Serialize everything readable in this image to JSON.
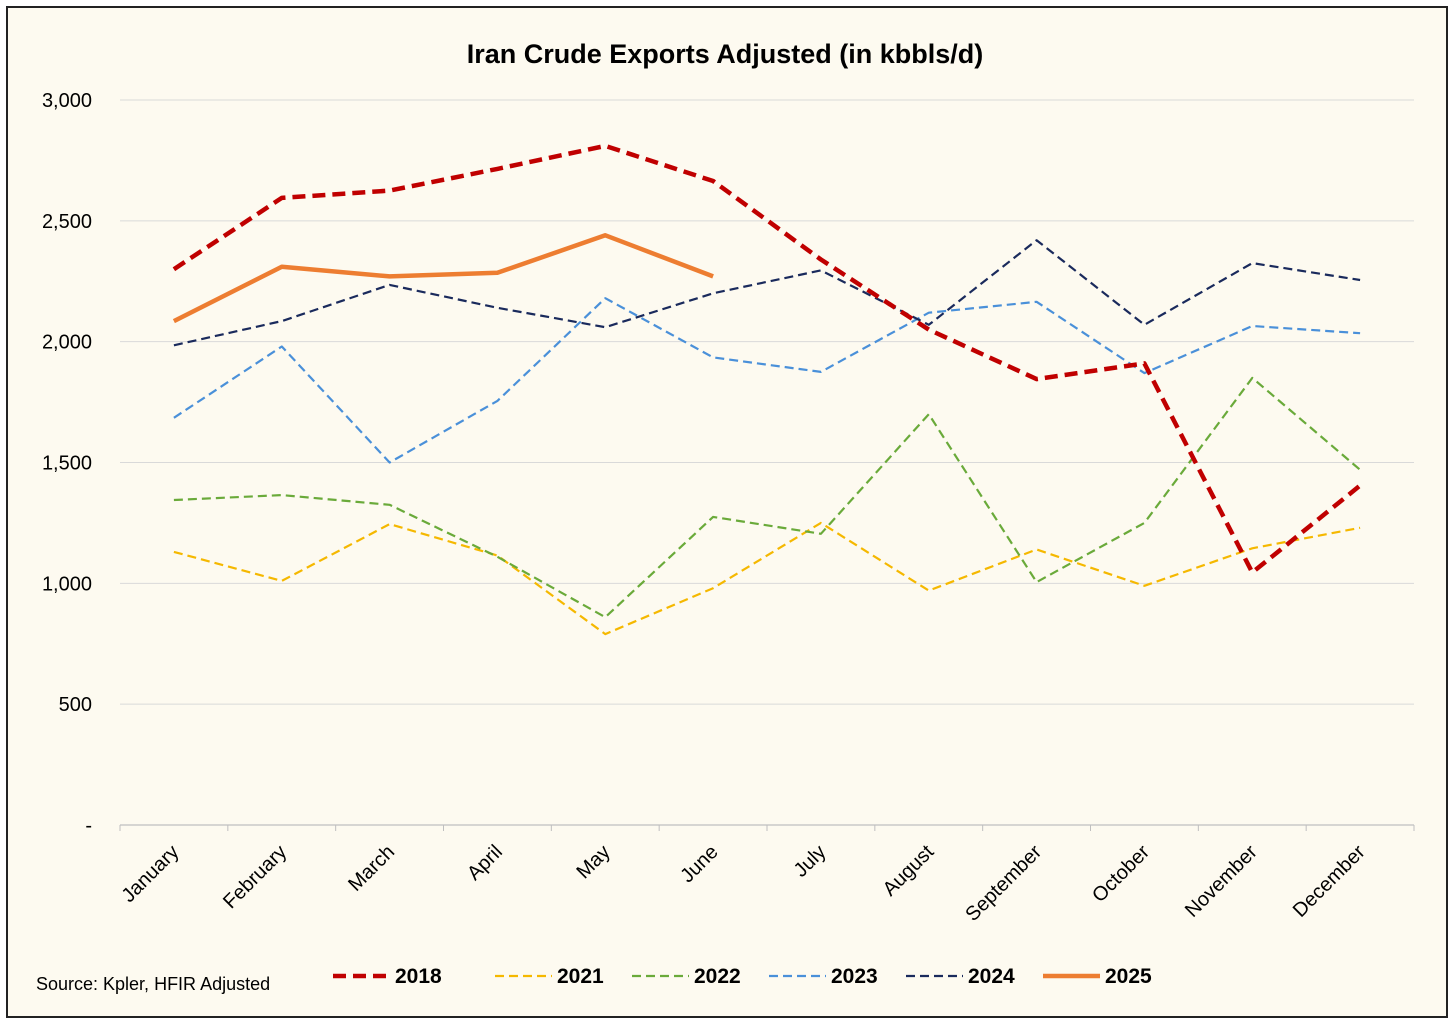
{
  "chart_data": {
    "type": "line",
    "title": "Iran Crude Exports Adjusted (in kbbls/d)",
    "xlabel": "",
    "ylabel": "",
    "ylim": [
      0,
      3000
    ],
    "y_ticks": [
      {
        "value": 0,
        "label": "-"
      },
      {
        "value": 500,
        "label": "500"
      },
      {
        "value": 1000,
        "label": "1,000"
      },
      {
        "value": 1500,
        "label": "1,500"
      },
      {
        "value": 2000,
        "label": "2,000"
      },
      {
        "value": 2500,
        "label": "2,500"
      },
      {
        "value": 3000,
        "label": "3,000"
      }
    ],
    "grid": true,
    "categories": [
      "January",
      "February",
      "March",
      "April",
      "May",
      "June",
      "July",
      "August",
      "September",
      "October",
      "November",
      "December"
    ],
    "series": [
      {
        "name": "2018",
        "color": "#c00000",
        "style": "dashed-thick",
        "values": [
          2300,
          2595,
          2625,
          2715,
          2810,
          2665,
          2340,
          2050,
          1845,
          1910,
          1045,
          1405
        ]
      },
      {
        "name": "2021",
        "color": "#f5b800",
        "style": "dashed",
        "values": [
          1130,
          1010,
          1245,
          1115,
          790,
          980,
          1250,
          970,
          1140,
          990,
          1145,
          1230
        ]
      },
      {
        "name": "2022",
        "color": "#6aaa3a",
        "style": "dashed",
        "values": [
          1345,
          1365,
          1325,
          1110,
          860,
          1275,
          1205,
          1700,
          1005,
          1250,
          1850,
          1470
        ]
      },
      {
        "name": "2023",
        "color": "#4a90d9",
        "style": "dashed",
        "values": [
          1685,
          1980,
          1500,
          1755,
          2180,
          1935,
          1875,
          2120,
          2165,
          1870,
          2065,
          2035
        ]
      },
      {
        "name": "2024",
        "color": "#1a2a5c",
        "style": "dashed",
        "values": [
          1985,
          2085,
          2235,
          2140,
          2060,
          2200,
          2295,
          2070,
          2420,
          2070,
          2325,
          2255
        ]
      },
      {
        "name": "2025",
        "color": "#ed7d31",
        "style": "solid-thick",
        "values": [
          2085,
          2310,
          2270,
          2285,
          2440,
          2270,
          null,
          null,
          null,
          null,
          null,
          null
        ]
      }
    ],
    "legend_position": "bottom",
    "source_note": "Source: Kpler, HFIR Adjusted"
  }
}
